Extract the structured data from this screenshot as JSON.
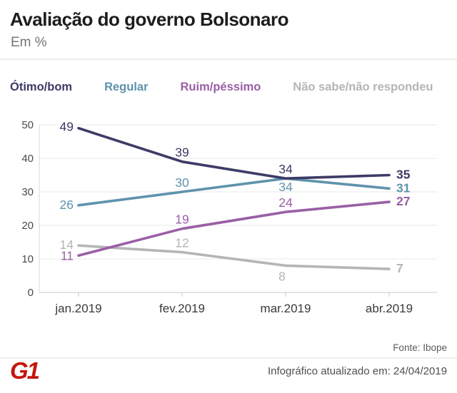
{
  "header": {
    "title": "Avaliação do governo Bolsonaro",
    "subtitle": "Em %"
  },
  "chart_data": {
    "type": "line",
    "title": "Avaliação do governo Bolsonaro",
    "subtitle": "Em %",
    "unit": "%",
    "categories": [
      "jan.2019",
      "fev.2019",
      "mar.2019",
      "abr.2019"
    ],
    "series": [
      {
        "name": "Ótimo/bom",
        "values": [
          49,
          39,
          34,
          35
        ],
        "color": "#3d3b66"
      },
      {
        "name": "Regular",
        "values": [
          26,
          30,
          34,
          31
        ],
        "color": "#5f93ac"
      },
      {
        "name": "Ruim/péssimo",
        "values": [
          11,
          19,
          24,
          27
        ],
        "color": "#9a5fa5"
      },
      {
        "name": "Não sabe/não respondeu",
        "values": [
          14,
          12,
          8,
          7
        ],
        "color": "#b5b5b5"
      }
    ],
    "ylim": [
      0,
      50
    ],
    "yticks": [
      0,
      10,
      20,
      30,
      40,
      50
    ],
    "grid": true,
    "legend_position": "top"
  },
  "footer": {
    "source": "Fonte: Ibope",
    "updated": "Infográfico atualizado em: 24/04/2019",
    "logo_text": "G1",
    "logo_color": "#c4170c"
  }
}
